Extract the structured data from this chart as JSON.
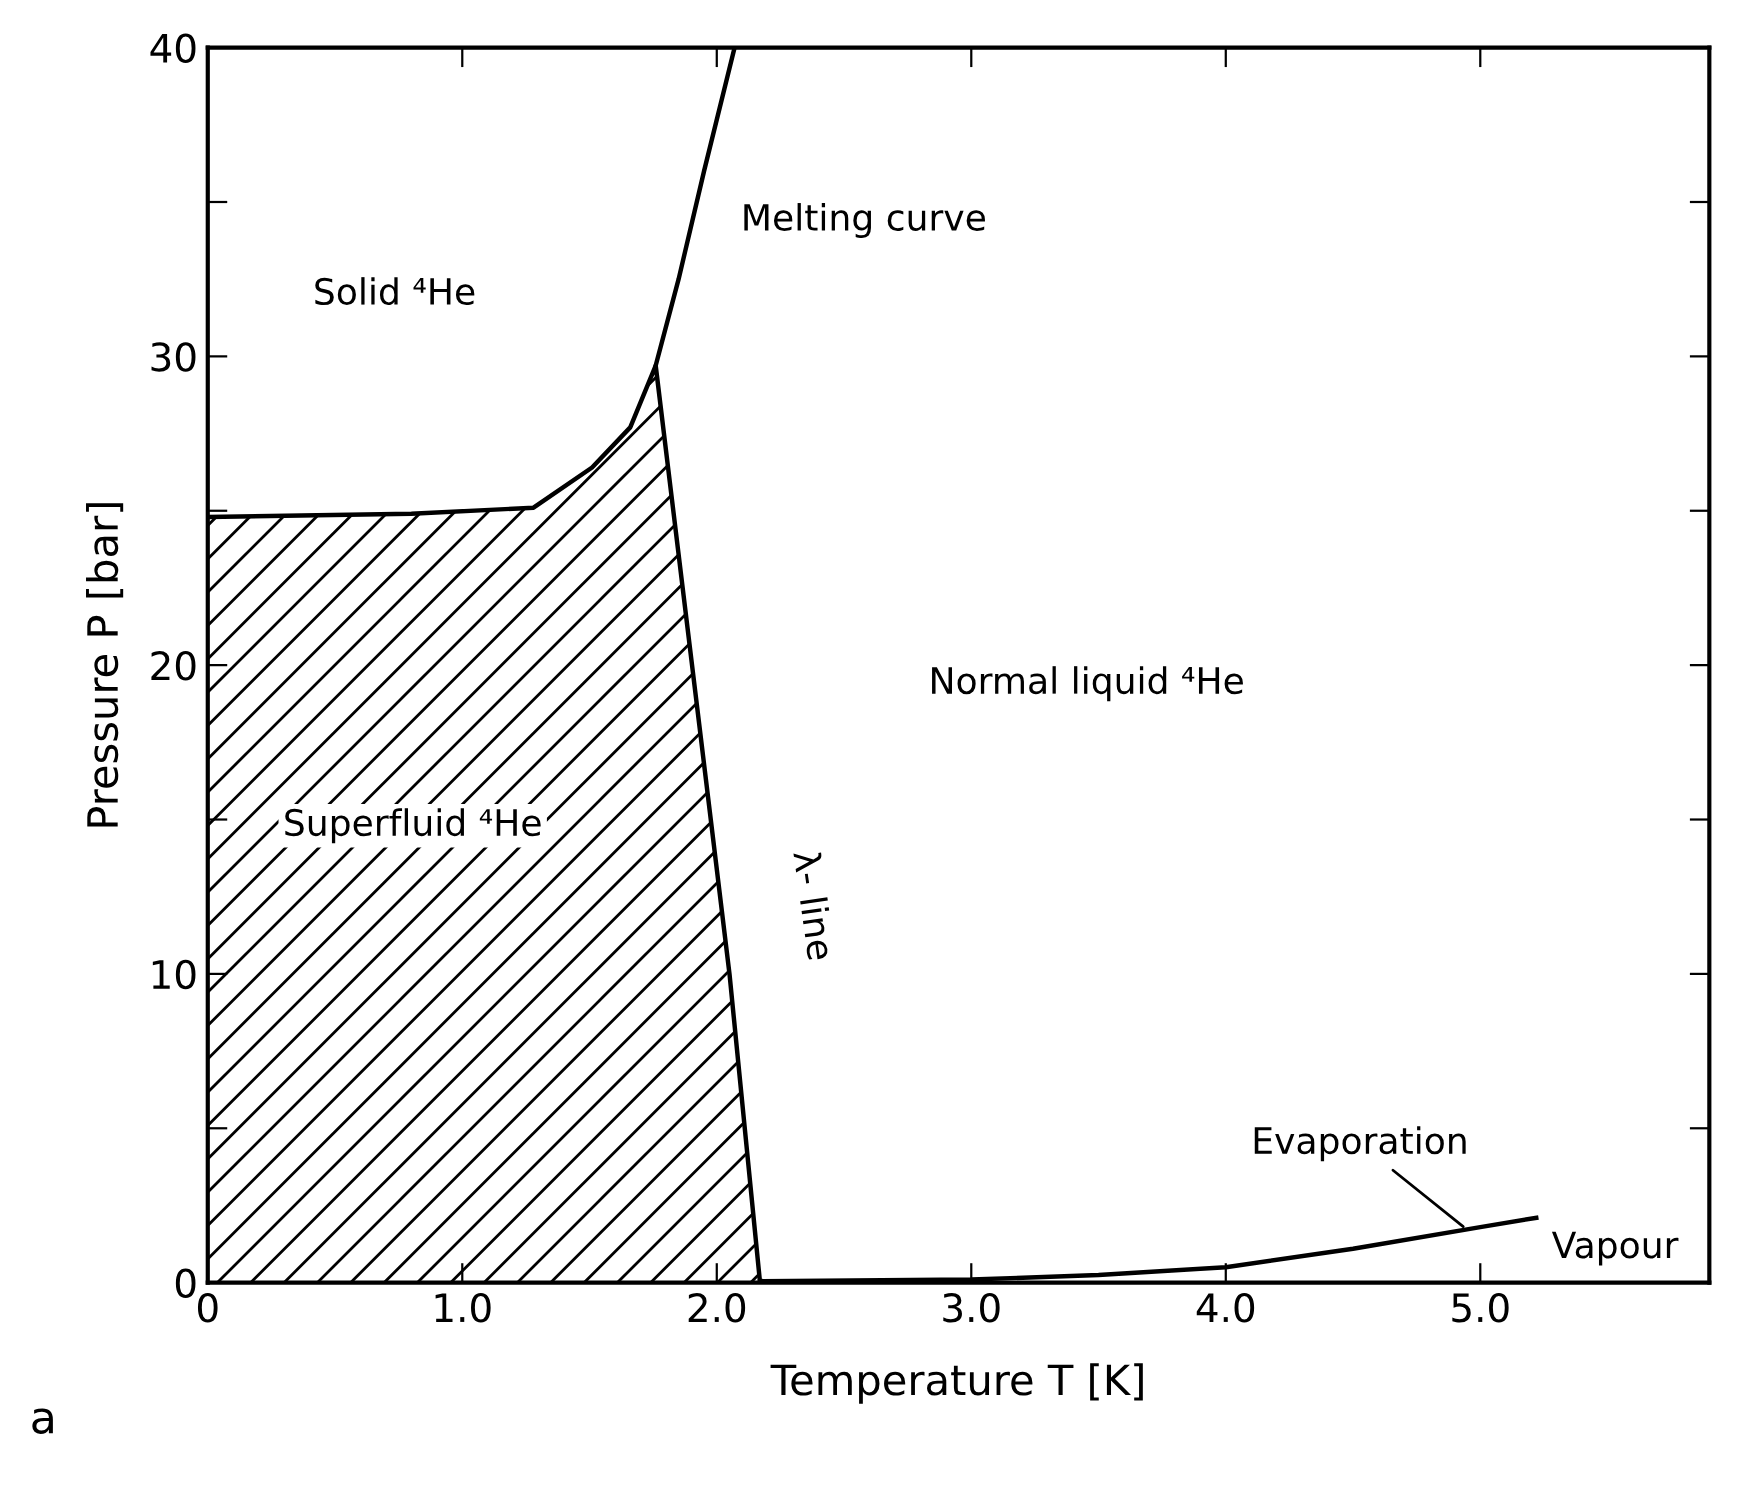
{
  "chart_data": {
    "type": "line",
    "xlabel": "Temperature T [K]",
    "ylabel": "Pressure P [bar]",
    "xlim": [
      0,
      5.9
    ],
    "ylim": [
      0,
      40
    ],
    "xticks": [
      0,
      {
        "value": 1,
        "label": "1.0"
      },
      {
        "value": 2,
        "label": "2.0"
      },
      {
        "value": 3,
        "label": "3.0"
      },
      {
        "value": 4,
        "label": "4.0"
      },
      {
        "value": 5,
        "label": "5.0"
      }
    ],
    "yticks": [
      0,
      {
        "value": 5,
        "label": null
      },
      10,
      {
        "value": 15,
        "label": null
      },
      20,
      {
        "value": 25,
        "label": null
      },
      30,
      {
        "value": 35,
        "label": null
      },
      40
    ],
    "grid": false,
    "series": [
      {
        "type": "area",
        "color": "#000000",
        "x": [
          0,
          0.8,
          1.28,
          1.51,
          1.66,
          1.76,
          2.05,
          2.17
        ],
        "values": [
          24.8,
          24.9,
          25.1,
          26.4,
          27.7,
          29.7,
          10,
          0
        ]
      },
      {
        "color": "#000000",
        "x": [
          1.76,
          1.85,
          1.95,
          2.07
        ],
        "values": [
          29.7,
          32.5,
          36,
          40
        ]
      },
      {
        "color": "#000000",
        "x": [
          2.17,
          3.0,
          3.5,
          4.0,
          4.5,
          5.0,
          5.22
        ],
        "values": [
          0.05,
          0.1,
          0.25,
          0.5,
          1.1,
          1.8,
          2.1
        ]
      }
    ],
    "annotations": [
      "Solid ⁴He",
      "Melting curve",
      "Normal liquid ⁴He",
      "Superfluid ⁴He",
      "λ- line",
      {
        "text": "Evaporation",
        "x": 4.95,
        "y": 1.7
      },
      "Vapour",
      "a"
    ]
  }
}
